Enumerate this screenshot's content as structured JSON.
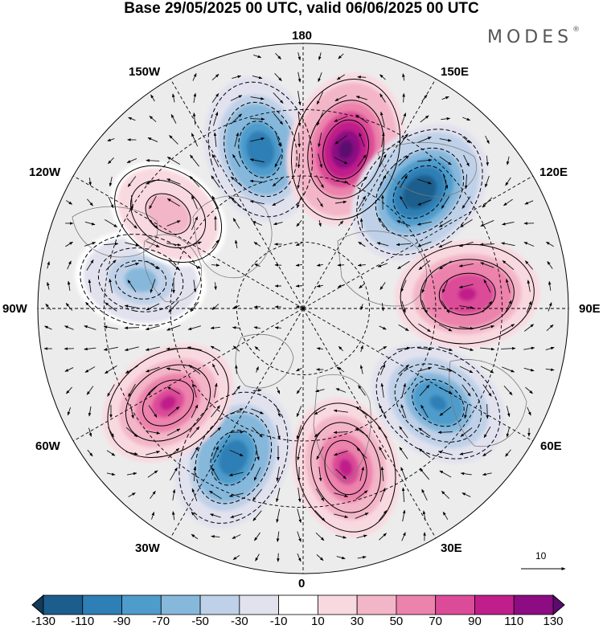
{
  "header": {
    "title": "Base 29/05/2025 00 UTC, valid 06/06/2025 00 UTC",
    "brand": "MODES",
    "brand_mark": "®"
  },
  "map": {
    "projection": "north-polar-stereographic",
    "longitude_labels": {
      "top": "180",
      "lon_150W": "150W",
      "lon_150E": "150E",
      "lon_120W": "120W",
      "lon_120E": "120E",
      "lon_90W": "90W",
      "lon_90E": "90E",
      "lon_60W": "60W",
      "lon_60E": "60E",
      "lon_30W": "30W",
      "lon_30E": "30E",
      "bottom": "0"
    },
    "field_anomalies": [
      {
        "sign": "negative",
        "peak": -110,
        "sector": "near 165W"
      },
      {
        "sign": "positive",
        "peak": 130,
        "sector": "near 165E"
      },
      {
        "sign": "negative",
        "peak": -130,
        "sector": "near 135E"
      },
      {
        "sign": "positive",
        "peak": 100,
        "sector": "near 95E"
      },
      {
        "sign": "negative",
        "peak": -100,
        "sector": "near 55E"
      },
      {
        "sign": "positive",
        "peak": 90,
        "sector": "near 15E"
      },
      {
        "sign": "negative",
        "peak": -110,
        "sector": "near 25W"
      },
      {
        "sign": "positive",
        "peak": 90,
        "sector": "near 55W"
      },
      {
        "sign": "negative",
        "peak": -60,
        "sector": "near 100W"
      },
      {
        "sign": "positive",
        "peak": 40,
        "sector": "near 125W"
      }
    ],
    "vector_scale": {
      "label": "10"
    },
    "colors": {
      "land_outline": "#7a7a7a",
      "grid": "#000000",
      "neutral_fill": "#eaeaea"
    }
  },
  "colorbar": {
    "labels": [
      "-130",
      "-110",
      "-90",
      "-70",
      "-50",
      "-30",
      "-10",
      "10",
      "30",
      "50",
      "70",
      "90",
      "110",
      "130"
    ],
    "colors": [
      "#133a59",
      "#1b5e8d",
      "#2e7fb5",
      "#4e9ccc",
      "#86b8dc",
      "#bfd1e8",
      "#e2e2ef",
      "#ffffff",
      "#f9d9e0",
      "#f3b6c8",
      "#ec83ac",
      "#dc4b98",
      "#c01e8a",
      "#8d0c83",
      "#5b0a70"
    ]
  }
}
